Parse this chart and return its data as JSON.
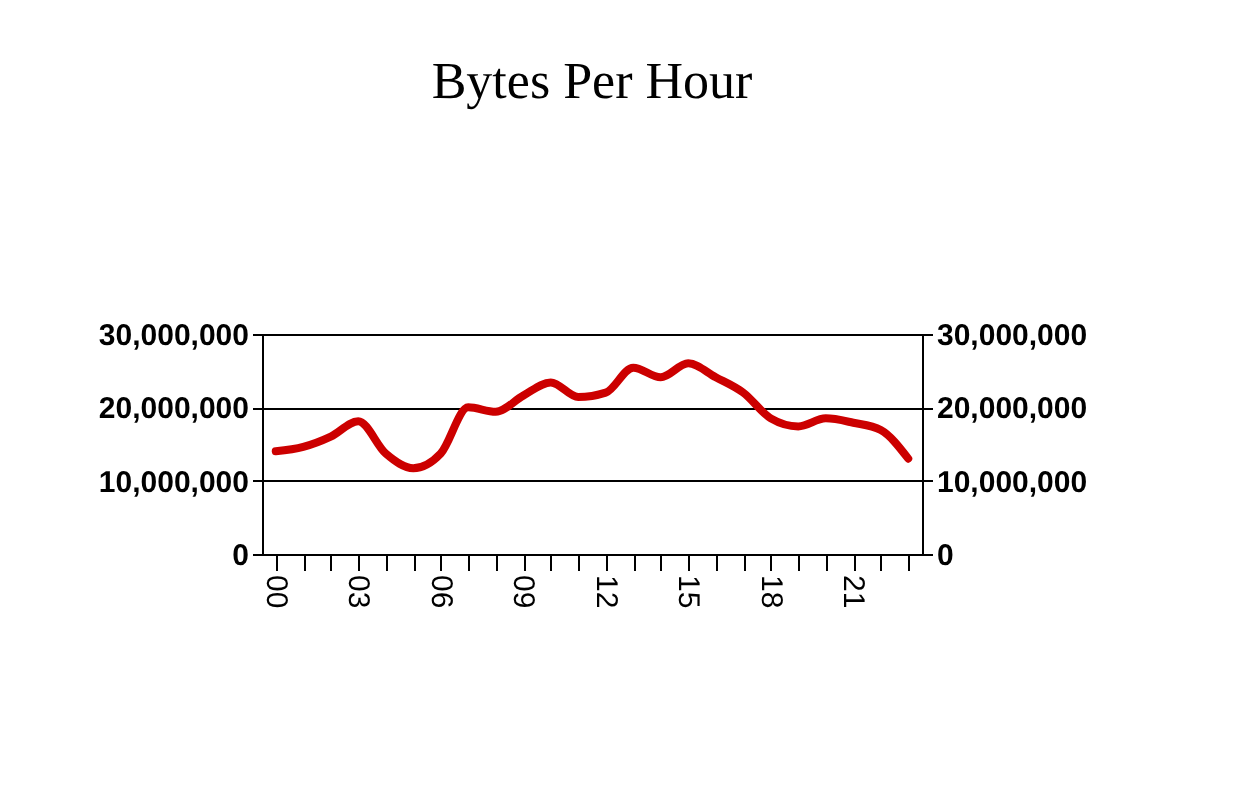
{
  "chart_data": {
    "type": "line",
    "title": "Bytes Per Hour",
    "categories": [
      "00",
      null,
      null,
      "03",
      null,
      null,
      "06",
      null,
      null,
      "09",
      null,
      null,
      "12",
      null,
      null,
      "15",
      null,
      null,
      "18",
      null,
      null,
      "21",
      null,
      null
    ],
    "series": [
      {
        "color": "#cc0000",
        "values": [
          14000000,
          14600000,
          16000000,
          18100000,
          13700000,
          11700000,
          13700000,
          20000000,
          19400000,
          21600000,
          23400000,
          21400000,
          22000000,
          25400000,
          24100000,
          26000000,
          24100000,
          22000000,
          18500000,
          17400000,
          18500000,
          17900000,
          16900000,
          13000000
        ]
      }
    ],
    "ylim": [
      0,
      30000000
    ],
    "yticks": [
      0,
      {
        "value": 10000000,
        "label": "10,000,000"
      },
      {
        "value": 20000000,
        "label": "20,000,000"
      },
      {
        "value": 30000000,
        "label": "30,000,000"
      }
    ],
    "y2lim": [
      0,
      30000000
    ],
    "y2ticks": [
      0,
      {
        "value": 10000000,
        "label": "10,000,000"
      },
      {
        "value": 20000000,
        "label": "20,000,000"
      },
      {
        "value": 30000000,
        "label": "30,000,000"
      }
    ],
    "grid": "y",
    "marker": "none",
    "line_style": "solid"
  }
}
